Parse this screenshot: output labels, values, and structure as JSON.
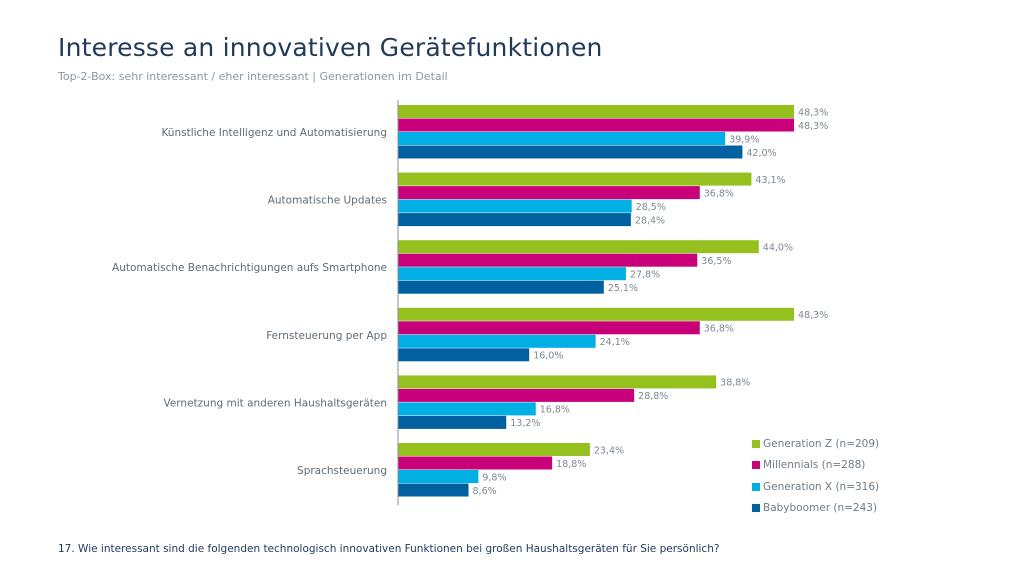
{
  "title": "Interesse an innovativen Gerätefunktionen",
  "subtitle": "Top-2-Box: sehr interessant / eher interessant | Generationen im Detail",
  "footnote": "17. Wie interessant sind die folgenden technologisch innovativen Funktionen bei großen Haushaltsgeräten für Sie persönlich?",
  "chart_data": {
    "type": "bar",
    "orientation": "horizontal",
    "categories": [
      "Künstliche Intelligenz und Automatisierung",
      "Automatische Updates",
      "Automatische Benachrichtigungen aufs Smartphone",
      "Fernsteuerung per App",
      "Vernetzung mit anderen Haushaltsgeräten",
      "Sprachsteuerung"
    ],
    "series": [
      {
        "name": "Generation Z (n=209)",
        "color": "#95c11f",
        "values": [
          48.3,
          43.1,
          44.0,
          48.3,
          38.8,
          23.4
        ],
        "labels": [
          "48,3%",
          "43,1%",
          "44,0%",
          "48,3%",
          "38,8%",
          "23,4%"
        ]
      },
      {
        "name": "Millennials (n=288)",
        "color": "#c8007a",
        "values": [
          48.3,
          36.8,
          36.5,
          36.8,
          28.8,
          18.8
        ],
        "labels": [
          "48,3%",
          "36,8%",
          "36,5%",
          "36,8%",
          "28,8%",
          "18,8%"
        ]
      },
      {
        "name": "Generation X (n=316)",
        "color": "#00afe3",
        "values": [
          39.9,
          28.5,
          27.8,
          24.1,
          16.8,
          9.8
        ],
        "labels": [
          "39,9%",
          "28,5%",
          "27,8%",
          "24,1%",
          "16,8%",
          "9,8%"
        ]
      },
      {
        "name": "Babyboomer (n=243)",
        "color": "#0060a0",
        "values": [
          42.0,
          28.4,
          25.1,
          16.0,
          13.2,
          8.6
        ],
        "labels": [
          "42,0%",
          "28,4%",
          "25,1%",
          "16,0%",
          "13,2%",
          "8,6%"
        ]
      }
    ],
    "unit": "%",
    "grid": false,
    "legend": "bottom-right"
  }
}
